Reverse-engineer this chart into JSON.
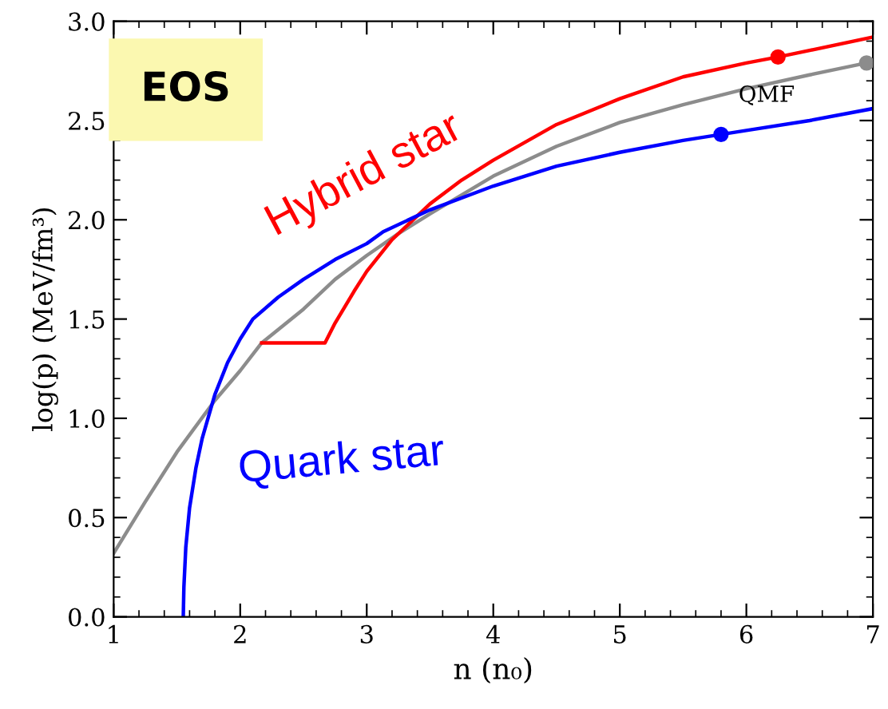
{
  "chart_data": {
    "type": "line",
    "xlabel": "n (n₀)",
    "ylabel": "log(p) (MeV/fm³)",
    "xlim": [
      1,
      7
    ],
    "ylim": [
      0,
      3.0
    ],
    "xticks": [
      1,
      2,
      3,
      4,
      5,
      6,
      7
    ],
    "yticks": [
      {
        "value": 0,
        "label": "0.0"
      },
      0.5,
      {
        "value": 1,
        "label": "1.0"
      },
      1.5,
      {
        "value": 2,
        "label": "2.0"
      },
      2.5,
      {
        "value": 3,
        "label": "3.0"
      }
    ],
    "grid": false,
    "line_style": "solid",
    "annotations": [
      "EOS"
    ],
    "series": [
      {
        "name": "QMF",
        "color": "#8c8c8c",
        "x": [
          1,
          1.25,
          1.5,
          1.8,
          2,
          2.17,
          2.5,
          2.75,
          3,
          3.25,
          3.5,
          4,
          4.5,
          5,
          5.5,
          6,
          6.5,
          6.95
        ],
        "values": [
          0.32,
          0.58,
          0.83,
          1.09,
          1.24,
          1.38,
          1.55,
          1.7,
          1.82,
          1.93,
          2.03,
          2.22,
          2.37,
          2.49,
          2.58,
          2.66,
          2.73,
          2.79
        ]
      },
      {
        "name": "Hybrid star",
        "color": "#ff0000",
        "x": [
          2.17,
          2.67,
          2.75,
          2.9,
          3,
          3.2,
          3.5,
          3.75,
          4,
          4.5,
          5,
          5.5,
          6,
          6.25,
          7
        ],
        "values": [
          1.38,
          1.38,
          1.48,
          1.64,
          1.74,
          1.9,
          2.08,
          2.2,
          2.3,
          2.48,
          2.61,
          2.72,
          2.79,
          2.82,
          2.92
        ]
      },
      {
        "name": "Quark star",
        "color": "#0000ff",
        "x": [
          1.55,
          1.555,
          1.57,
          1.6,
          1.65,
          1.7,
          1.8,
          1.9,
          2,
          2.1,
          2.3,
          2.5,
          2.75,
          3,
          3.13,
          3.5,
          4,
          4.5,
          5,
          5.5,
          5.8,
          6,
          6.5,
          7
        ],
        "values": [
          0,
          0.15,
          0.35,
          0.55,
          0.75,
          0.9,
          1.12,
          1.28,
          1.4,
          1.5,
          1.61,
          1.7,
          1.8,
          1.88,
          1.94,
          2.05,
          2.17,
          2.27,
          2.34,
          2.4,
          2.43,
          2.45,
          2.5,
          2.56
        ]
      },
      {
        "type": "scatter",
        "marker": "circle",
        "x": [
          6.95,
          6.25,
          5.8
        ],
        "values": [
          2.79,
          2.82,
          2.43
        ],
        "colors": [
          "#8c8c8c",
          "#ff0000",
          "#0000ff"
        ]
      }
    ]
  }
}
